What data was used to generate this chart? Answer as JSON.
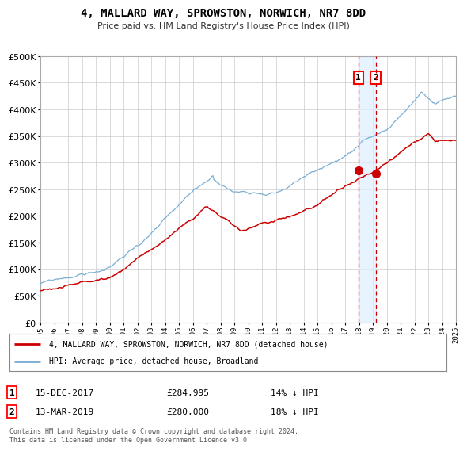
{
  "title": "4, MALLARD WAY, SPROWSTON, NORWICH, NR7 8DD",
  "subtitle": "Price paid vs. HM Land Registry's House Price Index (HPI)",
  "legend_label_red": "4, MALLARD WAY, SPROWSTON, NORWICH, NR7 8DD (detached house)",
  "legend_label_blue": "HPI: Average price, detached house, Broadland",
  "annotation1_date": "15-DEC-2017",
  "annotation1_price": "£284,995",
  "annotation1_hpi": "14% ↓ HPI",
  "annotation2_date": "13-MAR-2019",
  "annotation2_price": "£280,000",
  "annotation2_hpi": "18% ↓ HPI",
  "footnote": "Contains HM Land Registry data © Crown copyright and database right 2024.\nThis data is licensed under the Open Government Licence v3.0.",
  "vline1_x": 2017.958,
  "vline2_x": 2019.2,
  "sale1_x": 2017.958,
  "sale1_y": 284995,
  "sale2_x": 2019.2,
  "sale2_y": 280000,
  "ylim": [
    0,
    500000
  ],
  "xlim": [
    1995,
    2025
  ],
  "color_red": "#cc0000",
  "color_blue": "#7bafd4",
  "color_vline": "#cc0000",
  "color_shade": "#ddeeff",
  "background_color": "#ffffff",
  "grid_color": "#cccccc"
}
